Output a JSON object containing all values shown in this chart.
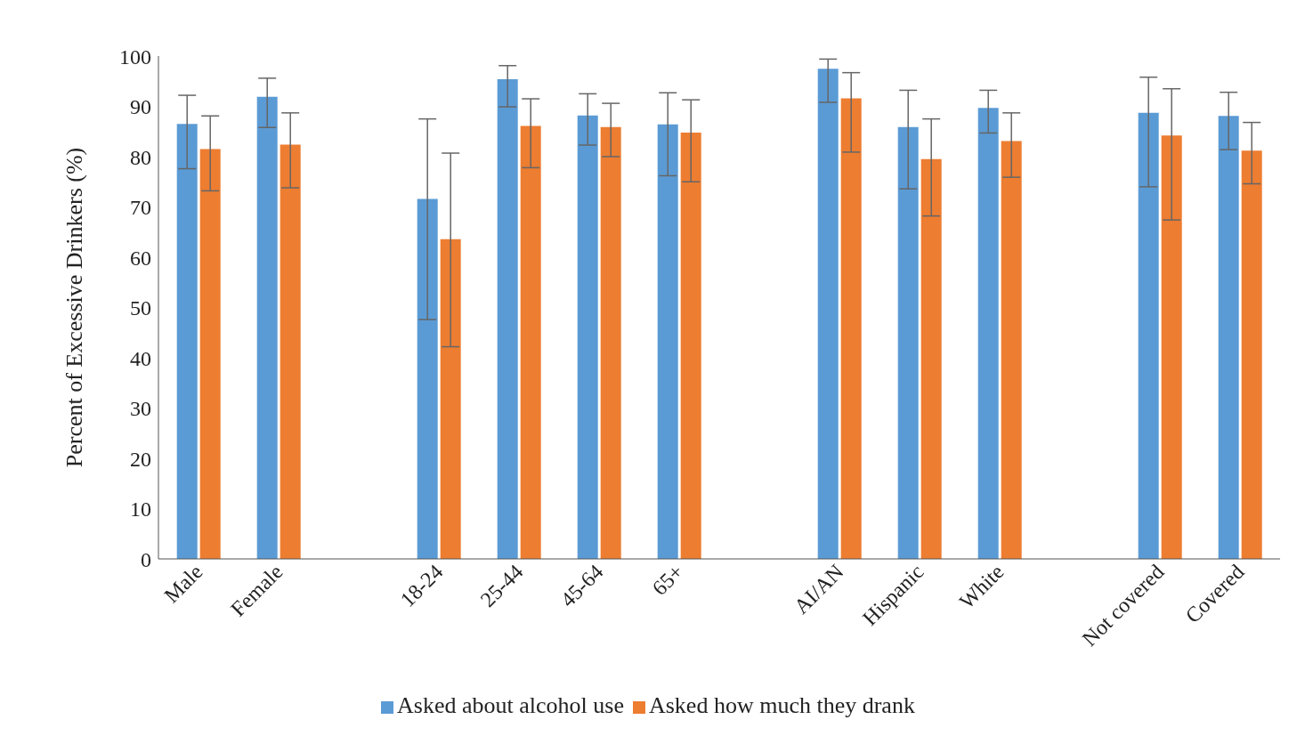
{
  "chart_data": {
    "type": "bar",
    "ylabel": "Percent of Excessive Drinkers (%)",
    "categories": [
      "Male",
      "Female",
      null,
      "18-24",
      "25-44",
      "45-64",
      "65+",
      null,
      "AI/AN",
      "Hispanic",
      "White",
      null,
      "Not covered",
      "Covered"
    ],
    "series": [
      {
        "name": "Asked about alcohol use",
        "color": "#5b9bd5",
        "values": [
          86.5,
          91.9,
          null,
          71.6,
          95.4,
          88.2,
          86.4,
          null,
          97.5,
          85.9,
          89.7,
          null,
          88.7,
          88.1
        ],
        "errors": [
          [
            77.6,
            92.2
          ],
          [
            85.8,
            95.6
          ],
          null,
          [
            47.6,
            87.5
          ],
          [
            89.9,
            98.1
          ],
          [
            82.3,
            92.5
          ],
          [
            76.2,
            92.7
          ],
          null,
          [
            90.8,
            99.4
          ],
          [
            73.6,
            93.2
          ],
          [
            84.7,
            93.2
          ],
          null,
          [
            74.0,
            95.8
          ],
          [
            81.4,
            92.8
          ]
        ]
      },
      {
        "name": "Asked how much they drank",
        "color": "#ed7d31",
        "values": [
          81.5,
          82.4,
          null,
          63.6,
          86.1,
          85.9,
          84.8,
          null,
          91.6,
          79.5,
          83.1,
          null,
          84.2,
          81.2
        ],
        "errors": [
          [
            73.2,
            88.1
          ],
          [
            73.8,
            88.7
          ],
          null,
          [
            42.2,
            80.7
          ],
          [
            77.8,
            91.5
          ],
          [
            80.0,
            90.6
          ],
          [
            75.0,
            91.3
          ],
          null,
          [
            80.9,
            96.7
          ],
          [
            68.2,
            87.5
          ],
          [
            75.9,
            88.7
          ],
          null,
          [
            67.4,
            93.5
          ],
          [
            74.6,
            86.8
          ]
        ]
      }
    ],
    "ylim": [
      0,
      100
    ],
    "yticks": [
      0,
      10,
      20,
      30,
      40,
      50,
      60,
      70,
      80,
      90,
      100
    ],
    "legend": "bottom"
  }
}
